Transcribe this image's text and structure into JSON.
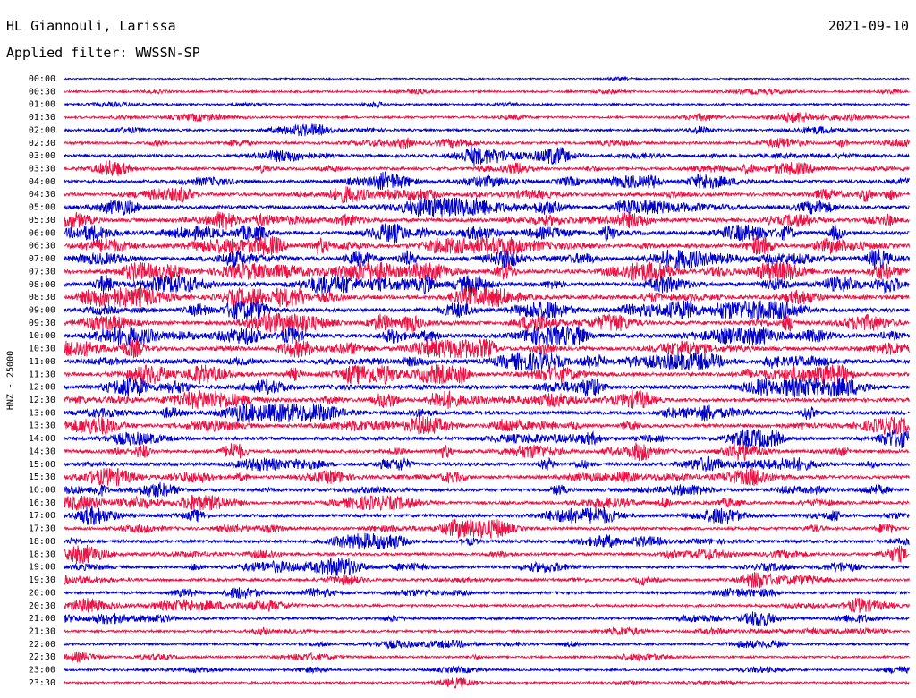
{
  "header": {
    "station": "HL Giannouli, Larissa",
    "date": "2021-09-10",
    "filter": "Applied filter: WWSSN-SP"
  },
  "chart_data": {
    "type": "line",
    "title": "HL Giannouli, Larissa",
    "ylabel": "HNZ - 25000",
    "categories": [
      "00:00",
      "00:30",
      "01:00",
      "01:30",
      "02:00",
      "02:30",
      "03:00",
      "03:30",
      "04:00",
      "04:30",
      "05:00",
      "05:30",
      "06:00",
      "06:30",
      "07:00",
      "07:30",
      "08:00",
      "08:30",
      "09:00",
      "09:30",
      "10:00",
      "10:30",
      "11:00",
      "11:30",
      "12:00",
      "12:30",
      "13:00",
      "13:30",
      "14:00",
      "14:30",
      "15:00",
      "15:30",
      "16:00",
      "16:30",
      "17:00",
      "17:30",
      "18:00",
      "18:30",
      "19:00",
      "19:30",
      "20:00",
      "20:30",
      "21:00",
      "21:30",
      "22:00",
      "22:30",
      "23:00",
      "23:30"
    ],
    "activity": [
      0.05,
      0.25,
      0.2,
      0.3,
      0.35,
      0.45,
      0.6,
      0.55,
      0.65,
      0.7,
      0.75,
      0.8,
      0.8,
      0.85,
      0.85,
      0.9,
      0.9,
      0.9,
      0.85,
      0.85,
      0.85,
      0.85,
      0.85,
      0.85,
      0.8,
      0.8,
      0.75,
      0.75,
      0.7,
      0.7,
      0.65,
      0.65,
      0.6,
      0.6,
      0.6,
      0.55,
      0.55,
      0.55,
      0.5,
      0.5,
      0.45,
      0.45,
      0.4,
      0.35,
      0.3,
      0.3,
      0.25,
      0.2
    ],
    "colors": [
      "#0000cc",
      "#ee1144"
    ],
    "grid": false,
    "legend": "none"
  }
}
